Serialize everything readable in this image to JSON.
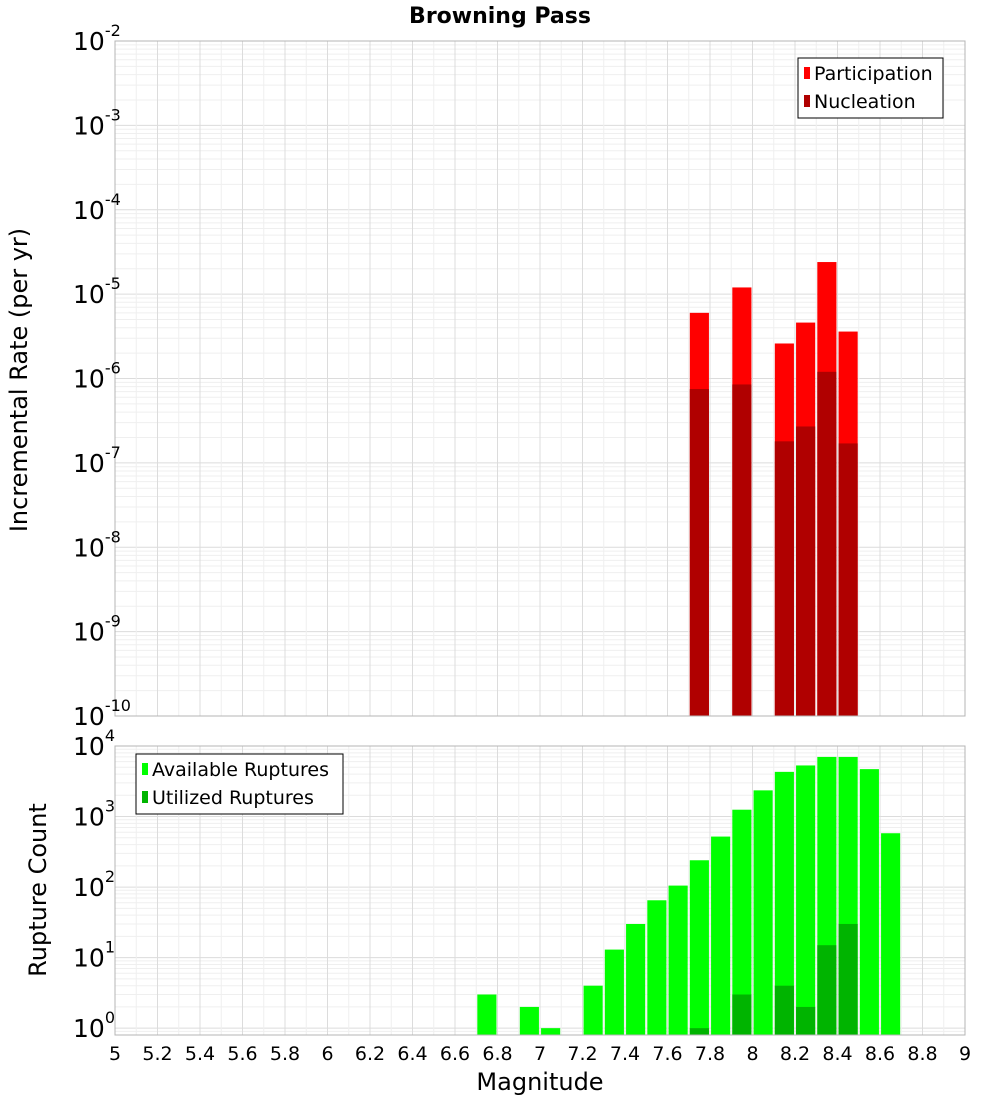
{
  "chart_data": [
    {
      "type": "bar",
      "title": "Browning Pass",
      "xlabel": "",
      "ylabel": "Incremental Rate (per yr)",
      "xlim": [
        5,
        9
      ],
      "yscale": "log",
      "ylim": [
        1e-10,
        0.01
      ],
      "yticks": [
        {
          "base": "10",
          "exp": "-10"
        },
        {
          "base": "10",
          "exp": "-9"
        },
        {
          "base": "10",
          "exp": "-8"
        },
        {
          "base": "10",
          "exp": "-7"
        },
        {
          "base": "10",
          "exp": "-6"
        },
        {
          "base": "10",
          "exp": "-5"
        },
        {
          "base": "10",
          "exp": "-4"
        },
        {
          "base": "10",
          "exp": "-3"
        },
        {
          "base": "10",
          "exp": "-2"
        }
      ],
      "grid": true,
      "legend_position": "top-right",
      "bar_width": 0.09,
      "series": [
        {
          "name": "Participation",
          "color": "#ff0000",
          "points": [
            {
              "x": 7.75,
              "y": 6e-06
            },
            {
              "x": 7.95,
              "y": 1.2e-05
            },
            {
              "x": 8.15,
              "y": 2.6e-06
            },
            {
              "x": 8.25,
              "y": 4.6e-06
            },
            {
              "x": 8.35,
              "y": 2.4e-05
            },
            {
              "x": 8.45,
              "y": 3.6e-06
            }
          ]
        },
        {
          "name": "Nucleation",
          "color": "#b00000",
          "points": [
            {
              "x": 7.75,
              "y": 7.5e-07
            },
            {
              "x": 7.95,
              "y": 8.5e-07
            },
            {
              "x": 8.15,
              "y": 1.8e-07
            },
            {
              "x": 8.25,
              "y": 2.7e-07
            },
            {
              "x": 8.35,
              "y": 1.2e-06
            },
            {
              "x": 8.45,
              "y": 1.7e-07
            }
          ]
        }
      ]
    },
    {
      "type": "bar",
      "title": "",
      "xlabel": "Magnitude",
      "ylabel": "Rupture Count",
      "xlim": [
        5,
        9
      ],
      "xticks": [
        "5",
        "5.2",
        "5.4",
        "5.6",
        "5.8",
        "6",
        "6.2",
        "6.4",
        "6.6",
        "6.8",
        "7",
        "7.2",
        "7.4",
        "7.6",
        "7.8",
        "8",
        "8.2",
        "8.4",
        "8.6",
        "8.8",
        "9"
      ],
      "yscale": "log",
      "ylim": [
        0.8,
        10000
      ],
      "yticks": [
        {
          "base": "10",
          "exp": "0"
        },
        {
          "base": "10",
          "exp": "1"
        },
        {
          "base": "10",
          "exp": "2"
        },
        {
          "base": "10",
          "exp": "3"
        },
        {
          "base": "10",
          "exp": "4"
        }
      ],
      "grid": true,
      "legend_position": "top-left",
      "bar_width": 0.09,
      "series": [
        {
          "name": "Available Ruptures",
          "color": "#00ff00",
          "points": [
            {
              "x": 6.75,
              "y": 3
            },
            {
              "x": 6.95,
              "y": 2
            },
            {
              "x": 7.05,
              "y": 1
            },
            {
              "x": 7.25,
              "y": 4
            },
            {
              "x": 7.35,
              "y": 13
            },
            {
              "x": 7.45,
              "y": 30
            },
            {
              "x": 7.55,
              "y": 65
            },
            {
              "x": 7.65,
              "y": 105
            },
            {
              "x": 7.75,
              "y": 240
            },
            {
              "x": 7.85,
              "y": 520
            },
            {
              "x": 7.95,
              "y": 1250
            },
            {
              "x": 8.05,
              "y": 2350
            },
            {
              "x": 8.15,
              "y": 4300
            },
            {
              "x": 8.25,
              "y": 5300
            },
            {
              "x": 8.35,
              "y": 7000
            },
            {
              "x": 8.45,
              "y": 7000
            },
            {
              "x": 8.55,
              "y": 4700
            },
            {
              "x": 8.65,
              "y": 580
            }
          ]
        },
        {
          "name": "Utilized Ruptures",
          "color": "#00b400",
          "points": [
            {
              "x": 7.75,
              "y": 1
            },
            {
              "x": 7.95,
              "y": 3
            },
            {
              "x": 8.15,
              "y": 4
            },
            {
              "x": 8.25,
              "y": 2
            },
            {
              "x": 8.35,
              "y": 15
            },
            {
              "x": 8.45,
              "y": 30
            }
          ]
        }
      ]
    }
  ]
}
